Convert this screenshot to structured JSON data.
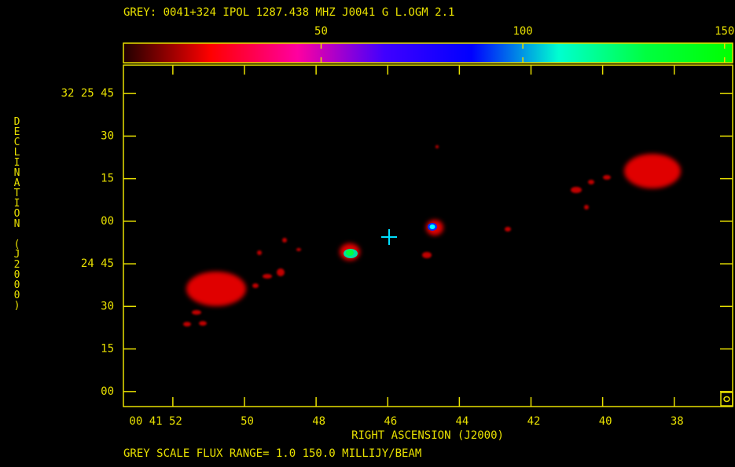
{
  "chart_data": {
    "type": "image",
    "title": "GREY: 0041+324  IPOL  1287.438 MHZ  J0041 G L.OGM 2.1",
    "xlabel": "RIGHT ASCENSION (J2000)",
    "ylabel": "DECLINATION (J2000)",
    "footer": "GREY SCALE FLUX RANGE= 1.0 150.0 MILLIJY/BEAM",
    "xlim": [
      53.38,
      36.37
    ],
    "xticks": [
      {
        "value": 52,
        "label": "00 41 52"
      },
      50,
      48,
      46,
      44,
      42,
      40,
      38
    ],
    "ylim": [
      -5.3,
      115
    ],
    "yticks": [
      {
        "value": 105,
        "label": "32 25 45"
      },
      {
        "value": 90,
        "label": "30"
      },
      {
        "value": 75,
        "label": "15"
      },
      {
        "value": 60,
        "label": "00"
      },
      {
        "value": 45,
        "label": "24 45"
      },
      30,
      15,
      {
        "value": 0,
        "label": "00"
      }
    ],
    "clim": [
      1,
      152
    ],
    "cticks": [
      50,
      100,
      150
    ],
    "colormap": [
      "#200000",
      "#ff0000",
      "#ff00a0",
      "#4000ff",
      "#0000ff",
      "#00ffd0",
      "#00ff40",
      "#00ff00"
    ],
    "color": "#e8e000"
  }
}
